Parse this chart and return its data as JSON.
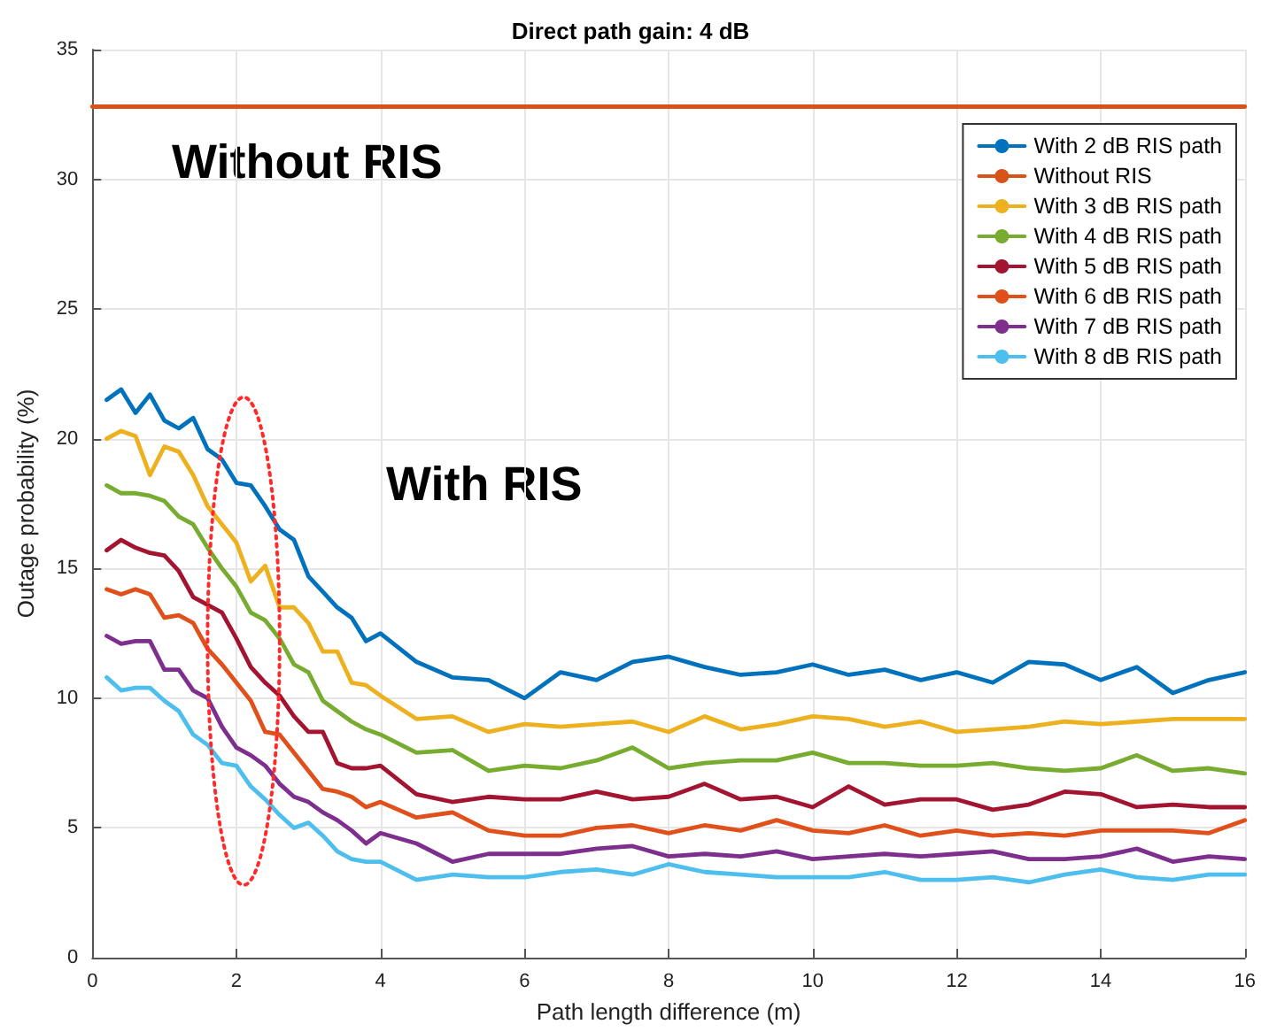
{
  "chart_data": {
    "type": "line",
    "title": "Direct path gain: 4 dB",
    "xlabel": "Path length difference (m)",
    "ylabel": "Outage probability (%)",
    "annotations": [
      "Without RIS",
      "With RIS"
    ],
    "x": [
      0.2,
      0.4,
      0.6,
      0.8,
      1.0,
      1.2,
      1.4,
      1.6,
      1.8,
      2.0,
      2.2,
      2.4,
      2.6,
      2.8,
      3.0,
      3.2,
      3.4,
      3.6,
      3.8,
      4.0,
      4.5,
      5.0,
      5.5,
      6.0,
      6.5,
      7.0,
      7.5,
      8.0,
      8.5,
      9.0,
      9.5,
      10.0,
      10.5,
      11.0,
      11.5,
      12.0,
      12.5,
      13.0,
      13.5,
      14.0,
      14.5,
      15.0,
      15.5,
      16.0
    ],
    "series": [
      {
        "name": "With 2 dB RIS path",
        "color": "#0072bd",
        "values": [
          21.5,
          21.9,
          21.0,
          21.7,
          20.7,
          20.4,
          20.8,
          19.6,
          19.2,
          18.3,
          18.2,
          17.4,
          16.5,
          16.1,
          14.7,
          14.1,
          13.5,
          13.1,
          12.2,
          12.5,
          11.4,
          10.8,
          10.7,
          10.0,
          11.0,
          10.7,
          11.4,
          11.6,
          11.2,
          10.9,
          11.0,
          11.3,
          10.9,
          11.1,
          10.7,
          11.0,
          10.6,
          11.4,
          11.3,
          10.7,
          11.2,
          10.2,
          10.7,
          11.0
        ]
      },
      {
        "name": "Without RIS",
        "color": "#d95319",
        "x": [
          0,
          16
        ],
        "values": [
          32.8,
          32.8
        ]
      },
      {
        "name": "With 3 dB RIS path",
        "color": "#edb120",
        "values": [
          20.0,
          20.3,
          20.1,
          18.6,
          19.7,
          19.5,
          18.6,
          17.4,
          16.7,
          16.0,
          14.5,
          15.1,
          13.5,
          13.5,
          12.9,
          11.8,
          11.8,
          10.6,
          10.5,
          10.1,
          9.2,
          9.3,
          8.7,
          9.0,
          8.9,
          9.0,
          9.1,
          8.7,
          9.3,
          8.8,
          9.0,
          9.3,
          9.2,
          8.9,
          9.1,
          8.7,
          8.8,
          8.9,
          9.1,
          9.0,
          9.1,
          9.2,
          9.2,
          9.2
        ]
      },
      {
        "name": "With 4 dB RIS path",
        "color": "#77ac30",
        "values": [
          18.2,
          17.9,
          17.9,
          17.8,
          17.6,
          17.0,
          16.7,
          15.8,
          15.0,
          14.3,
          13.3,
          13.0,
          12.3,
          11.3,
          11.0,
          9.9,
          9.5,
          9.1,
          8.8,
          8.6,
          7.9,
          8.0,
          7.2,
          7.4,
          7.3,
          7.6,
          8.1,
          7.3,
          7.5,
          7.6,
          7.6,
          7.9,
          7.5,
          7.5,
          7.4,
          7.4,
          7.5,
          7.3,
          7.2,
          7.3,
          7.8,
          7.2,
          7.3,
          7.1
        ]
      },
      {
        "name": "With 5 dB RIS path",
        "color": "#a2142f",
        "values": [
          15.7,
          16.1,
          15.8,
          15.6,
          15.5,
          14.9,
          13.9,
          13.6,
          13.3,
          12.3,
          11.2,
          10.6,
          10.1,
          9.3,
          8.7,
          8.7,
          7.5,
          7.3,
          7.3,
          7.4,
          6.3,
          6.0,
          6.2,
          6.1,
          6.1,
          6.4,
          6.1,
          6.2,
          6.7,
          6.1,
          6.2,
          5.8,
          6.6,
          5.9,
          6.1,
          6.1,
          5.7,
          5.9,
          6.4,
          6.3,
          5.8,
          5.9,
          5.8,
          5.8
        ]
      },
      {
        "name": "With 6 dB RIS path",
        "color": "#e0501a",
        "values": [
          14.2,
          14.0,
          14.2,
          14.0,
          13.1,
          13.2,
          12.9,
          11.9,
          11.3,
          10.6,
          9.9,
          8.7,
          8.6,
          7.9,
          7.2,
          6.5,
          6.4,
          6.2,
          5.8,
          6.0,
          5.4,
          5.6,
          4.9,
          4.7,
          4.7,
          5.0,
          5.1,
          4.8,
          5.1,
          4.9,
          5.3,
          4.9,
          4.8,
          5.1,
          4.7,
          4.9,
          4.7,
          4.8,
          4.7,
          4.9,
          4.9,
          4.9,
          4.8,
          5.3
        ]
      },
      {
        "name": "With 7 dB RIS path",
        "color": "#7e2f8e",
        "values": [
          12.4,
          12.1,
          12.2,
          12.2,
          11.1,
          11.1,
          10.3,
          10.0,
          8.9,
          8.1,
          7.8,
          7.4,
          6.7,
          6.2,
          6.0,
          5.6,
          5.3,
          4.9,
          4.4,
          4.8,
          4.4,
          3.7,
          4.0,
          4.0,
          4.0,
          4.2,
          4.3,
          3.9,
          4.0,
          3.9,
          4.1,
          3.8,
          3.9,
          4.0,
          3.9,
          4.0,
          4.1,
          3.8,
          3.8,
          3.9,
          4.2,
          3.7,
          3.9,
          3.8
        ]
      },
      {
        "name": "With 8 dB RIS path",
        "color": "#4dbeee",
        "values": [
          10.8,
          10.3,
          10.4,
          10.4,
          9.9,
          9.5,
          8.6,
          8.2,
          7.5,
          7.4,
          6.6,
          6.1,
          5.5,
          5.0,
          5.2,
          4.7,
          4.1,
          3.8,
          3.7,
          3.7,
          3.0,
          3.2,
          3.1,
          3.1,
          3.3,
          3.4,
          3.2,
          3.6,
          3.3,
          3.2,
          3.1,
          3.1,
          3.1,
          3.3,
          3.0,
          3.0,
          3.1,
          2.9,
          3.2,
          3.4,
          3.1,
          3.0,
          3.2,
          3.2
        ]
      }
    ],
    "xlim": [
      0,
      16
    ],
    "xticks": [
      0,
      2,
      4,
      6,
      8,
      10,
      12,
      14,
      16
    ],
    "ylim": [
      0,
      35
    ],
    "yticks": [
      0,
      5,
      10,
      15,
      20,
      25,
      30,
      35
    ],
    "grid": true,
    "legend": "top right",
    "marker": "none",
    "line_style": "solid"
  }
}
